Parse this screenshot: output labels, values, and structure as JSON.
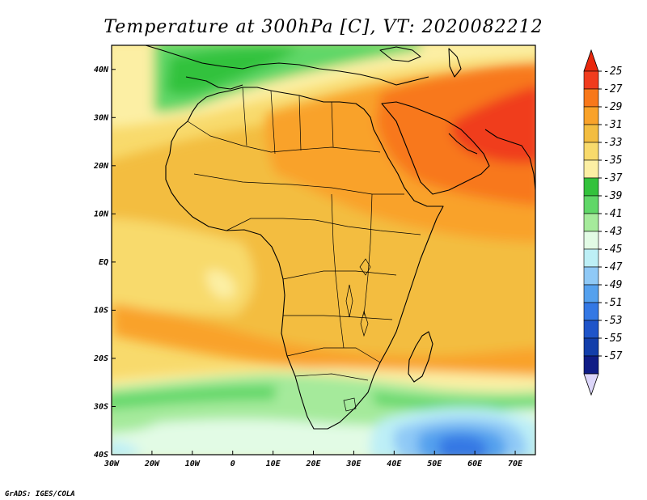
{
  "title": "Temperature at 300hPa [C], VT: 2020082212",
  "credit": "GrADS: IGES/COLA",
  "map": {
    "projection": "lat-lon",
    "lon_range": [
      -30,
      75
    ],
    "lat_range": [
      -40,
      45
    ],
    "lon_ticks": [
      "30W",
      "20W",
      "10W",
      "0",
      "10E",
      "20E",
      "30E",
      "40E",
      "50E",
      "60E",
      "70E"
    ],
    "lat_ticks": [
      "40N",
      "30N",
      "20N",
      "10N",
      "EQ",
      "10S",
      "20S",
      "30S",
      "40S"
    ]
  },
  "colorbar": {
    "labels": [
      "-25",
      "-27",
      "-29",
      "-31",
      "-33",
      "-35",
      "-37",
      "-39",
      "-41",
      "-43",
      "-45",
      "-47",
      "-49",
      "-51",
      "-53",
      "-55",
      "-57"
    ],
    "colors": [
      "#f03c1e",
      "#f8781a",
      "#f9a229",
      "#f3bd40",
      "#f8da6c",
      "#fcefa4",
      "#33c23c",
      "#60d768",
      "#a5ea9b",
      "#e2fbe5",
      "#bdeff6",
      "#8fc9f6",
      "#55a1ee",
      "#3478e4",
      "#1e54c9",
      "#123eaa",
      "#0f1c86"
    ],
    "max_arrow_color": "#e9280d",
    "min_arrow_color": "#dcd6fa"
  },
  "field": {
    "variable": "Temperature",
    "level": "300hPa",
    "units": "C",
    "warm_core_region": "Arabian Peninsula / Iran",
    "cold_core_region": "Southern Indian Ocean (40S, 50E)"
  }
}
